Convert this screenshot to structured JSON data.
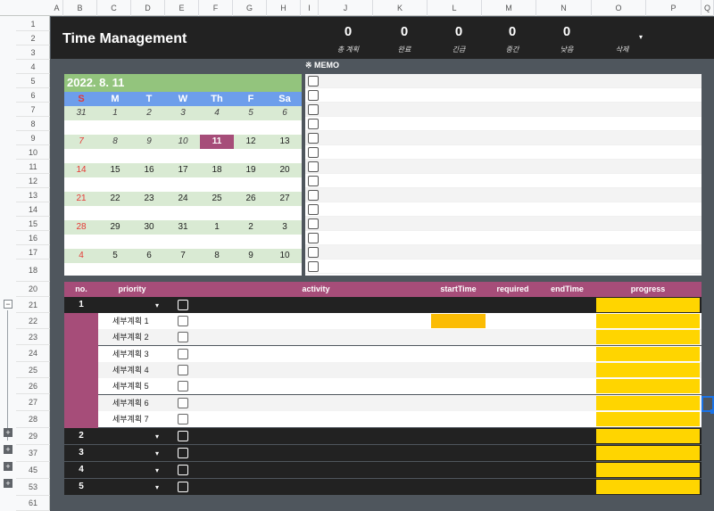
{
  "columns": [
    "A",
    "B",
    "C",
    "D",
    "E",
    "F",
    "G",
    "H",
    "I",
    "J",
    "K",
    "L",
    "M",
    "N",
    "O",
    "P",
    "Q"
  ],
  "rows": [
    {
      "label": "1"
    },
    {
      "label": "2"
    },
    {
      "label": "3"
    },
    {
      "label": "4"
    },
    {
      "label": "5"
    },
    {
      "label": "6"
    },
    {
      "label": "7"
    },
    {
      "label": "8"
    },
    {
      "label": "9"
    },
    {
      "label": "10"
    },
    {
      "label": "11"
    },
    {
      "label": "12"
    },
    {
      "label": "13"
    },
    {
      "label": "14"
    },
    {
      "label": "15"
    },
    {
      "label": "16"
    },
    {
      "label": "17"
    },
    {
      "label": "18"
    },
    {
      "label": "20"
    },
    {
      "label": "21"
    },
    {
      "label": "22"
    },
    {
      "label": "23"
    },
    {
      "label": "24"
    },
    {
      "label": "25"
    },
    {
      "label": "26"
    },
    {
      "label": "27"
    },
    {
      "label": "28"
    },
    {
      "label": "29"
    },
    {
      "label": "37"
    },
    {
      "label": "45"
    },
    {
      "label": "53"
    },
    {
      "label": "61"
    }
  ],
  "group_controls": {
    "collapse": "−",
    "expand": "+"
  },
  "header": {
    "title": "Time Management",
    "stats": [
      {
        "value": "0",
        "label": "총 계획"
      },
      {
        "value": "0",
        "label": "완료"
      },
      {
        "value": "0",
        "label": "긴급"
      },
      {
        "value": "0",
        "label": "중간"
      },
      {
        "value": "0",
        "label": "낮음"
      }
    ],
    "delete_label": "삭제",
    "caret": "▾"
  },
  "calendar": {
    "date": "2022. 8. 11",
    "days_of_week": [
      "S",
      "M",
      "T",
      "W",
      "Th",
      "F",
      "Sa"
    ],
    "weeks": [
      [
        "31",
        "1",
        "2",
        "3",
        "4",
        "5",
        "6"
      ],
      [
        "7",
        "8",
        "9",
        "10",
        "11",
        "12",
        "13"
      ],
      [
        "14",
        "15",
        "16",
        "17",
        "18",
        "19",
        "20"
      ],
      [
        "21",
        "22",
        "23",
        "24",
        "25",
        "26",
        "27"
      ],
      [
        "28",
        "29",
        "30",
        "31",
        "1",
        "2",
        "3"
      ],
      [
        "4",
        "5",
        "6",
        "7",
        "8",
        "9",
        "10"
      ]
    ],
    "today": "11",
    "colors": {
      "header": "#93c47d",
      "dow": "#6d9eeb",
      "week": "#d9ead3",
      "today": "#a64d79"
    }
  },
  "memo": {
    "title": "※  MEMO"
  },
  "tasks": {
    "columns": {
      "no": "no.",
      "priority": "priority",
      "activity": "activity",
      "startTime": "startTime",
      "required": "required",
      "endTime": "endTime",
      "progress": "progress"
    },
    "groups": [
      {
        "no": "1",
        "subtasks": [
          "세부계획 1",
          "세부계획 2",
          "세부계획 3",
          "세부계획 4",
          "세부계획 5",
          "세부계획 6",
          "세부계획 7"
        ]
      },
      {
        "no": "2"
      },
      {
        "no": "3"
      },
      {
        "no": "4"
      },
      {
        "no": "5"
      }
    ],
    "colors": {
      "header": "#a64d79",
      "progress": "#ffd500",
      "start": "#fbbc04"
    }
  }
}
